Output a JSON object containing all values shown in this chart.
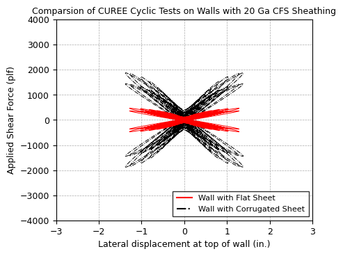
{
  "title": "Comparsion of CUREE Cyclic Tests on Walls with 20 Ga CFS Sheathing",
  "xlabel": "Lateral displacement at top of wall (in.)",
  "ylabel": "Applied Shear Force (plf)",
  "xlim": [
    -3,
    3
  ],
  "ylim": [
    -4000,
    4000
  ],
  "xticks": [
    -3,
    -2,
    -1,
    0,
    1,
    2,
    3
  ],
  "yticks": [
    -4000,
    -3000,
    -2000,
    -1000,
    0,
    1000,
    2000,
    3000,
    4000
  ],
  "legend_flat": "Wall with Flat Sheet",
  "legend_corrugated": "Wall with Corrugated Sheet",
  "flat_color": "#ff0000",
  "corrugated_color": "#000000",
  "background_color": "#ffffff",
  "title_fontsize": 9,
  "label_fontsize": 9,
  "tick_fontsize": 9,
  "grid_color": "#aaaaaa",
  "grid_style": "--"
}
